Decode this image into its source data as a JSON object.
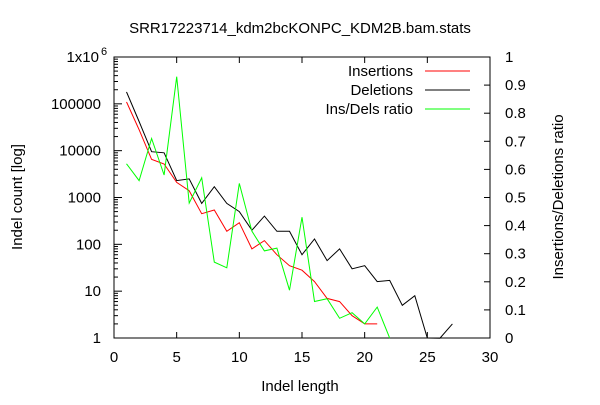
{
  "chart_data": {
    "type": "line",
    "title": "SRR17223714_kdm2bcKONPC_KDM2B.bam.stats",
    "xlabel": "Indel length",
    "ylabel": "Indel count [log]",
    "y2label": "Insertions/Deletions ratio",
    "xlim": [
      0,
      30
    ],
    "ylim": [
      1,
      1000000
    ],
    "y2lim": [
      0,
      1
    ],
    "yscale": "log",
    "legend_position": "top-right",
    "grid": false,
    "x_ticks": [
      "0",
      "5",
      "10",
      "15",
      "20",
      "25",
      "30"
    ],
    "y_ticks": [
      {
        "value": 1,
        "label": "1"
      },
      {
        "value": 10,
        "label": "10"
      },
      {
        "value": 100,
        "label": "100"
      },
      {
        "value": 1000,
        "label": "1000"
      },
      {
        "value": 10000,
        "label": "10000"
      },
      {
        "value": 100000,
        "label": "100000"
      },
      {
        "value": 1000000,
        "label": "1x10",
        "exponent": "6"
      }
    ],
    "y2_ticks": [
      "0",
      "0.1",
      "0.2",
      "0.3",
      "0.4",
      "0.5",
      "0.6",
      "0.7",
      "0.8",
      "0.9",
      "1"
    ],
    "series": [
      {
        "name": "Insertions",
        "axis": "y",
        "color": "#ff0000",
        "x": [
          1,
          2,
          3,
          4,
          5,
          6,
          7,
          8,
          9,
          10,
          11,
          12,
          13,
          14,
          15,
          16,
          17,
          18,
          19,
          20,
          21
        ],
        "y": [
          110000,
          28000,
          6500,
          5200,
          2100,
          1400,
          450,
          540,
          190,
          290,
          80,
          120,
          60,
          35,
          28,
          16,
          7,
          6,
          3,
          2,
          2
        ]
      },
      {
        "name": "Deletions",
        "axis": "y",
        "color": "#000000",
        "x": [
          1,
          2,
          3,
          4,
          5,
          6,
          7,
          8,
          9,
          10,
          11,
          12,
          13,
          14,
          15,
          16,
          17,
          18,
          19,
          20,
          21,
          22,
          23,
          24,
          25,
          26,
          27
        ],
        "y": [
          180000,
          42000,
          9500,
          9000,
          2300,
          2500,
          750,
          1700,
          750,
          500,
          200,
          400,
          190,
          190,
          60,
          130,
          45,
          80,
          30,
          35,
          16,
          17,
          5,
          8,
          1,
          0.99,
          2
        ]
      },
      {
        "name": "Ins/Dels ratio",
        "axis": "y2",
        "color": "#00ff00",
        "x": [
          1,
          2,
          3,
          4,
          5,
          6,
          7,
          8,
          9,
          10,
          11,
          12,
          13,
          14,
          15,
          16,
          17,
          18,
          19,
          20,
          21,
          22
        ],
        "y": [
          0.62,
          0.56,
          0.71,
          0.58,
          0.93,
          0.48,
          0.57,
          0.27,
          0.25,
          0.55,
          0.38,
          0.31,
          0.32,
          0.17,
          0.43,
          0.13,
          0.14,
          0.07,
          0.09,
          0.05,
          0.11,
          0
        ]
      }
    ]
  }
}
